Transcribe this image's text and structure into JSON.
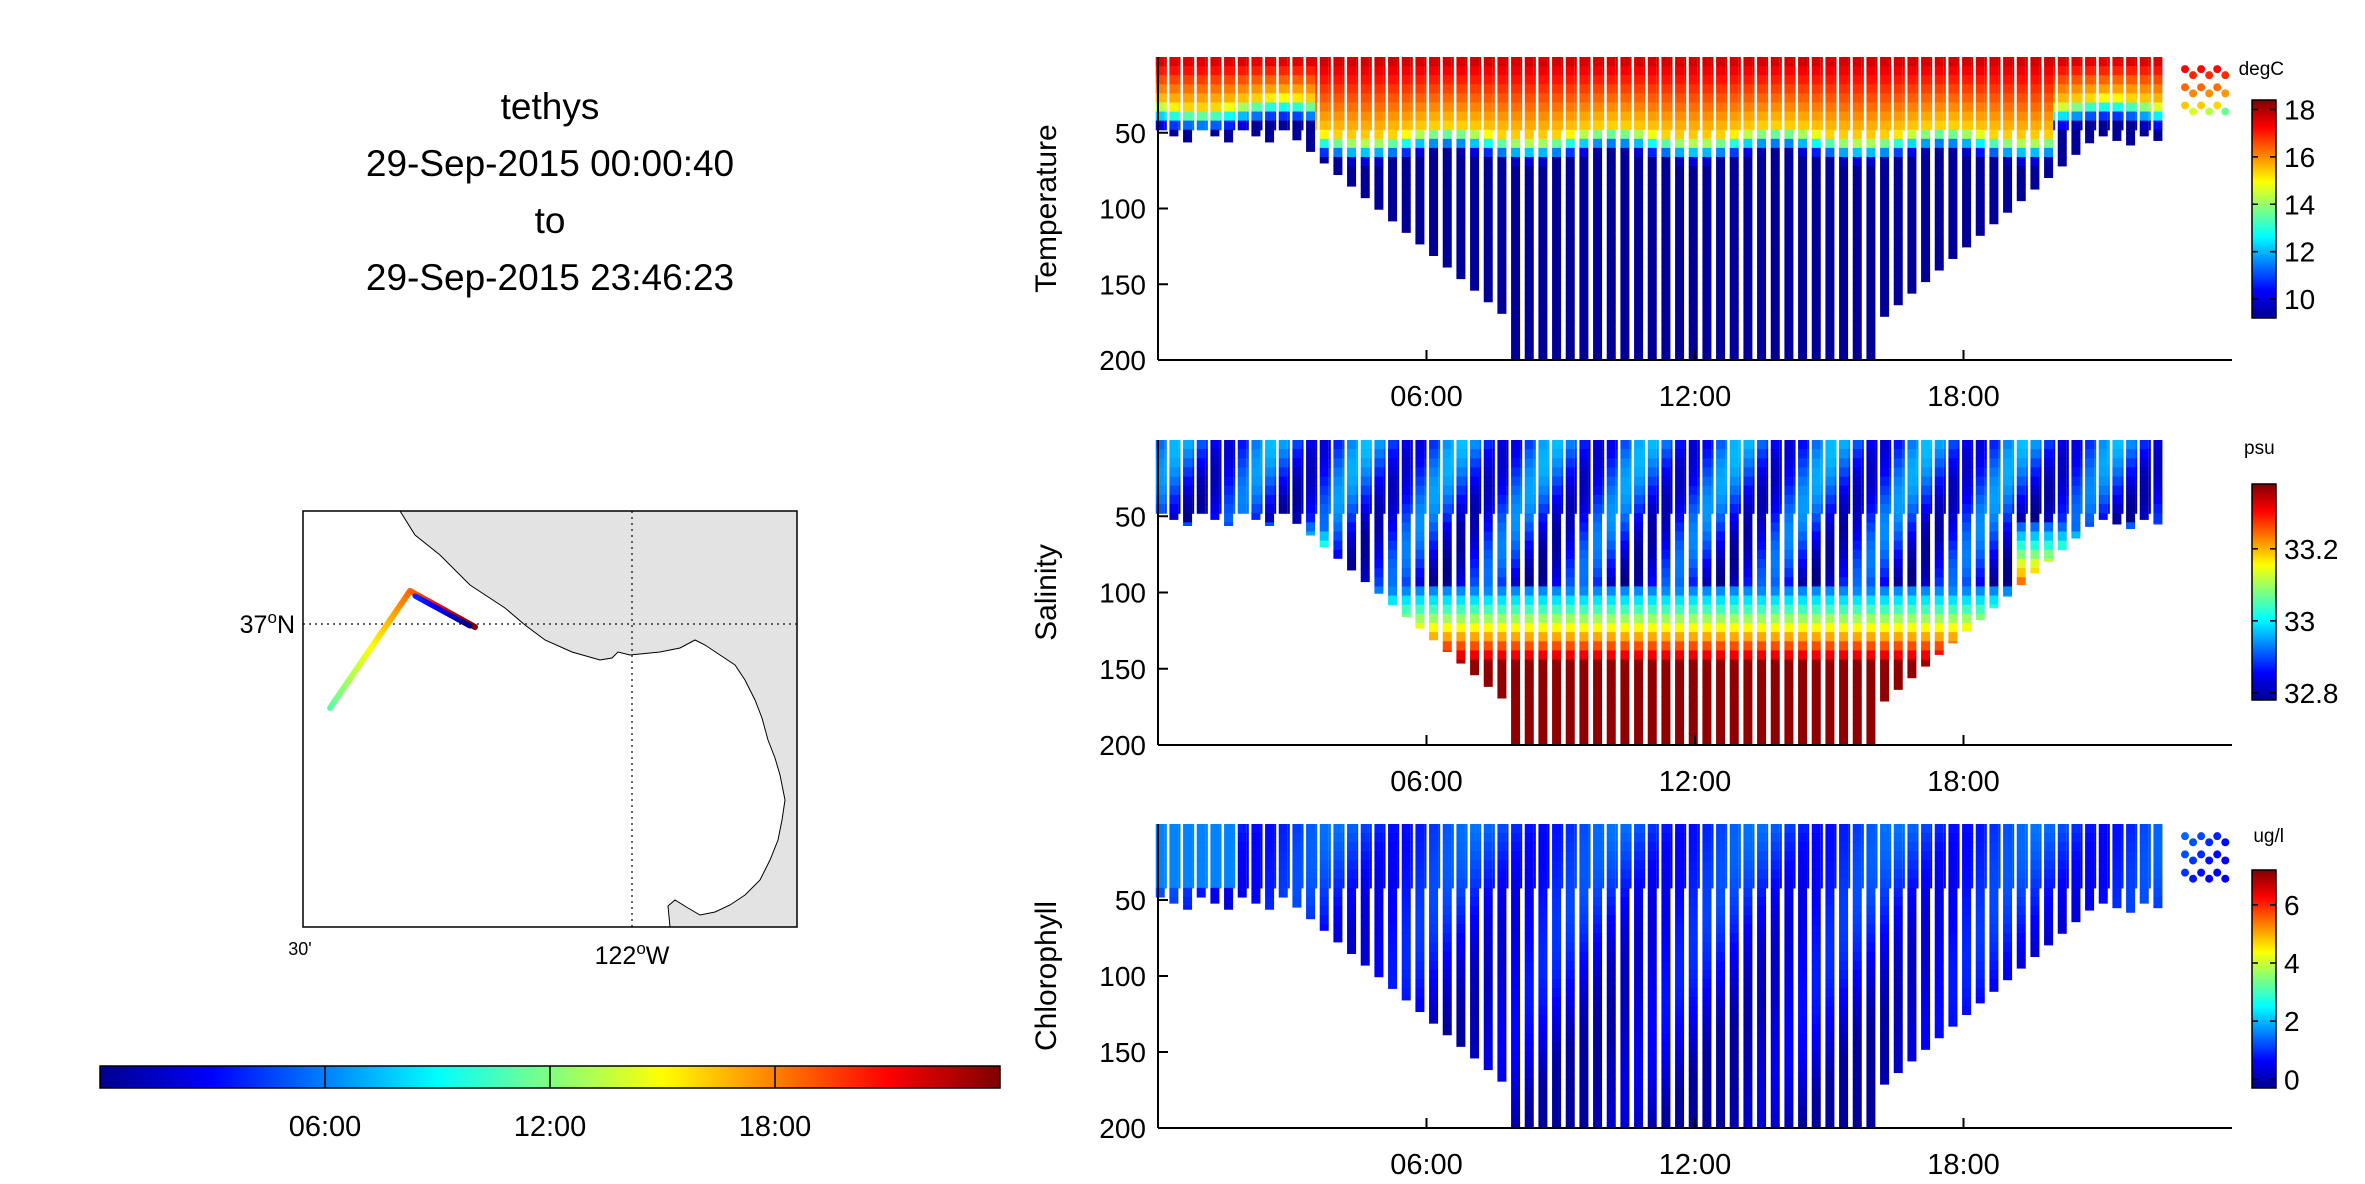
{
  "header": {
    "vehicle": "tethys",
    "start": "29-Sep-2015 00:00:40",
    "sep": "to",
    "end": "29-Sep-2015 23:46:23"
  },
  "map": {
    "lat_label": "37",
    "lat_deg": "o",
    "lat_hemi": "N",
    "lon_label": "122",
    "lon_deg": "o",
    "lon_hemi": "W",
    "lon_min_label": "30'",
    "land_color": "#e3e3e3",
    "track_colormap": "jet (time)"
  },
  "time_colorbar": {
    "ticks": [
      "06:00",
      "12:00",
      "18:00"
    ],
    "range_hours": [
      0,
      24
    ],
    "colormap": "jet"
  },
  "chart_data": [
    {
      "type": "scatter",
      "ylabel": "Temperature",
      "units": "degC",
      "y_reversed": true,
      "ylim": [
        0,
        200
      ],
      "yticks": [
        50,
        100,
        150,
        200
      ],
      "xlim_hours": [
        0,
        24
      ],
      "xticks": [
        "06:00",
        "12:00",
        "18:00"
      ],
      "colorbar_ticks": [
        10,
        12,
        14,
        16,
        18
      ],
      "clim": [
        9.2,
        18.4
      ],
      "colormap": "jet",
      "profiles": {
        "shallow_depth_m": [
          45,
          50,
          55,
          60
        ],
        "deep_depth_m": 200,
        "deep_window_hours": [
          7.8,
          16.2
        ],
        "count": 70
      },
      "surface_value": 18,
      "deep_value": 9.5
    },
    {
      "type": "scatter",
      "ylabel": "Salinity",
      "units": "psu",
      "y_reversed": true,
      "ylim": [
        0,
        200
      ],
      "yticks": [
        50,
        100,
        150,
        200
      ],
      "xlim_hours": [
        0,
        24
      ],
      "xticks": [
        "06:00",
        "12:00",
        "18:00"
      ],
      "colorbar_ticks": [
        32.8,
        33,
        33.2
      ],
      "clim": [
        32.78,
        33.38
      ],
      "colormap": "jet",
      "surface_value": 32.95,
      "deep_value": 33.35
    },
    {
      "type": "scatter",
      "ylabel": "Chlorophyll",
      "units": "ug/l",
      "y_reversed": true,
      "ylim": [
        0,
        200
      ],
      "yticks": [
        50,
        100,
        150,
        200
      ],
      "xlim_hours": [
        0,
        24
      ],
      "xticks": [
        "06:00",
        "12:00",
        "18:00"
      ],
      "colorbar_ticks": [
        0,
        2,
        4,
        6
      ],
      "clim": [
        -0.3,
        7.2
      ],
      "colormap": "jet",
      "surface_value": 1.0,
      "deep_value": 0.2
    }
  ]
}
